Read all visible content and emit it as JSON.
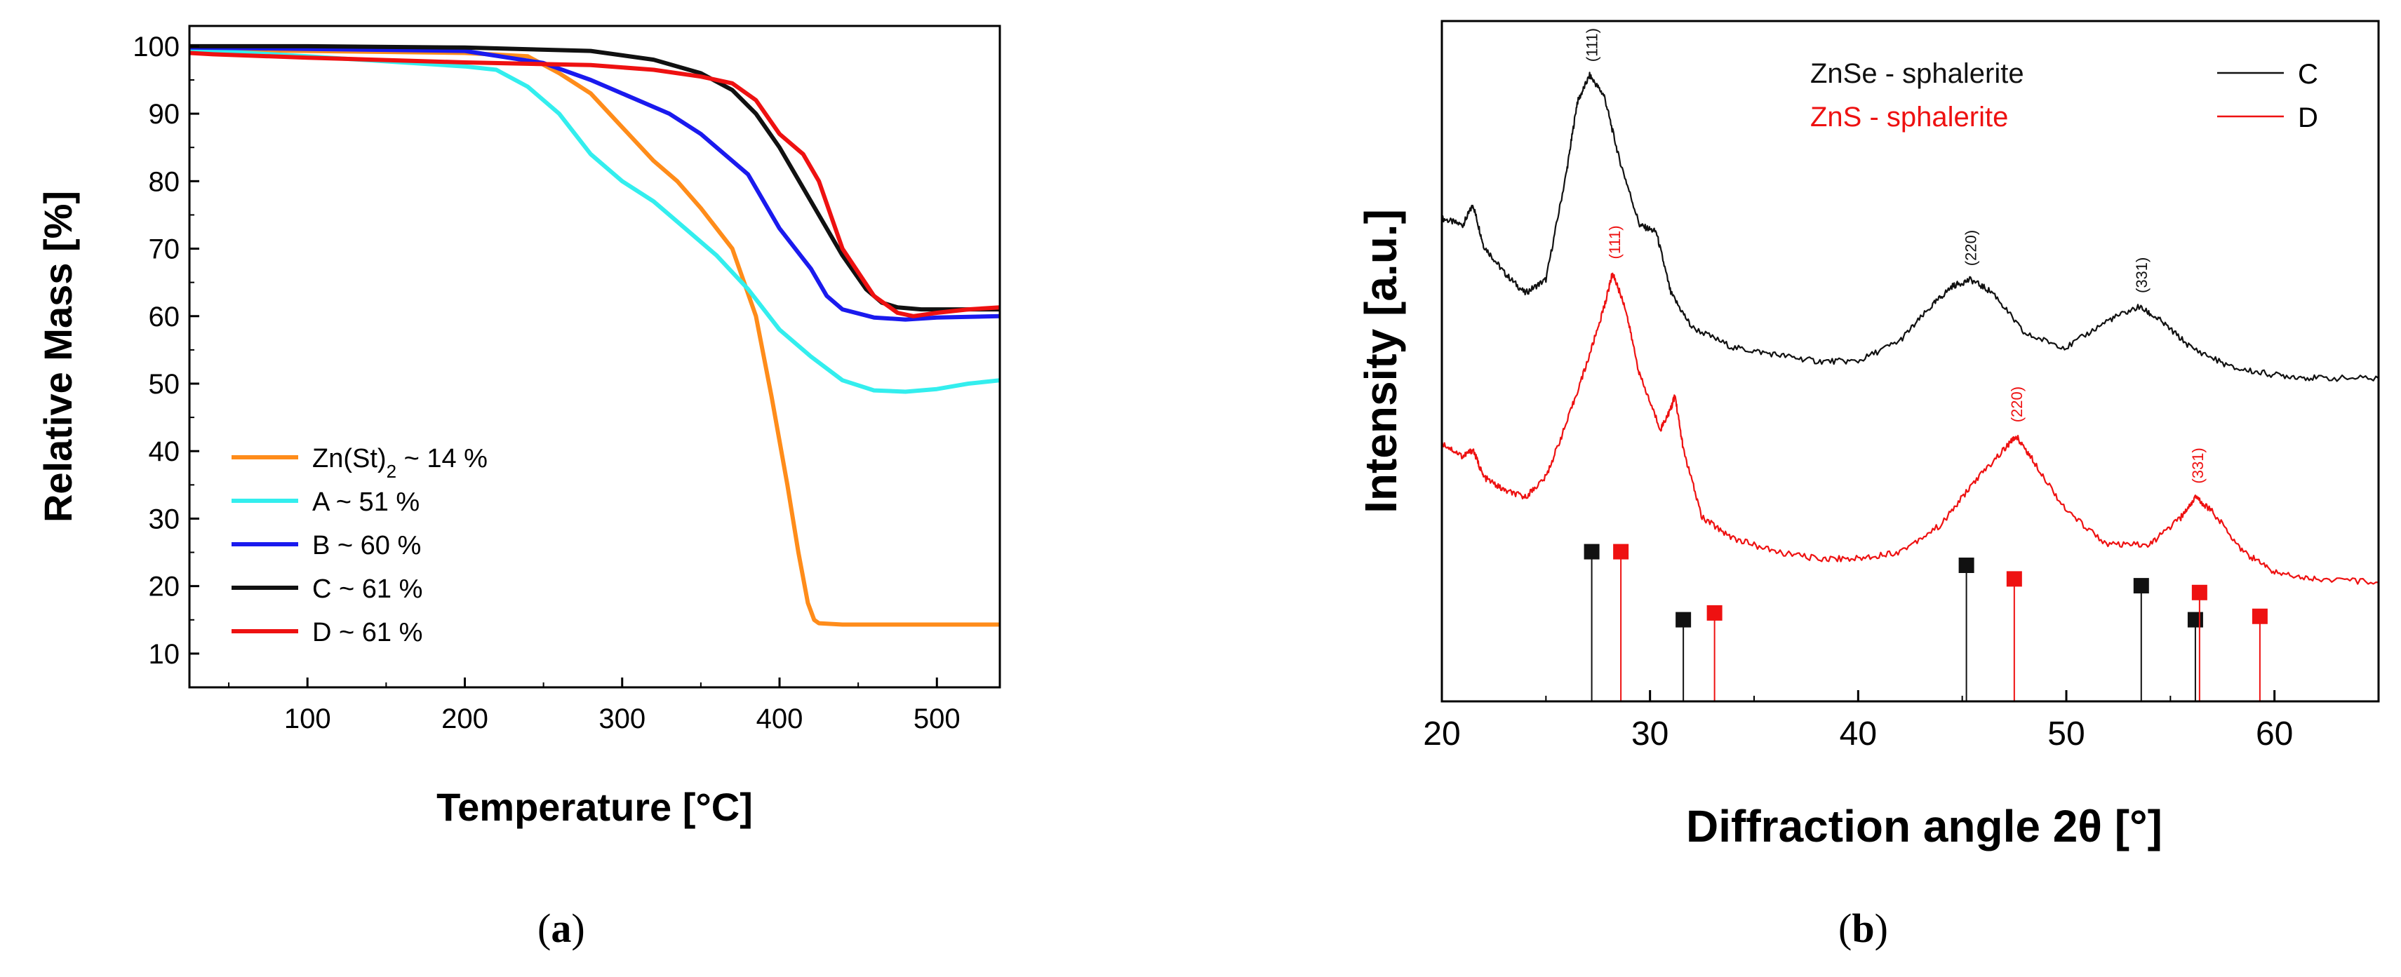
{
  "figure": {
    "panel_a_label": "a",
    "panel_b_label": "b"
  },
  "chart_data": [
    {
      "type": "line",
      "panel": "a",
      "xlabel": "Temperature [°C]",
      "ylabel": "Relative Mass [%]",
      "xlim": [
        25,
        540
      ],
      "ylim": [
        5,
        103
      ],
      "xticks": [
        100,
        200,
        300,
        400,
        500
      ],
      "yticks": [
        10,
        20,
        30,
        40,
        50,
        60,
        70,
        80,
        90,
        100
      ],
      "grid": false,
      "legend_position": "bottom-left",
      "series": [
        {
          "name": "Zn(St)2 ~ 14 %",
          "legend_main": "Zn(St)",
          "legend_sub": "2",
          "legend_tail": " ~ 14 %",
          "color": "#ff8c1a",
          "x": [
            25,
            100,
            200,
            240,
            260,
            280,
            300,
            320,
            335,
            350,
            370,
            385,
            395,
            405,
            412,
            418,
            422,
            425,
            440,
            500,
            540
          ],
          "y": [
            99.5,
            99.3,
            99.0,
            98.5,
            96.0,
            93.0,
            88.0,
            83.0,
            80.0,
            76.0,
            70.0,
            60.0,
            48.0,
            35.0,
            25.0,
            17.5,
            15.0,
            14.5,
            14.3,
            14.3,
            14.3
          ]
        },
        {
          "name": "A ~ 51 %",
          "legend_main": "A ~ 51 %",
          "legend_sub": "",
          "legend_tail": "",
          "color": "#33eeee",
          "x": [
            25,
            100,
            200,
            220,
            240,
            260,
            280,
            300,
            320,
            340,
            360,
            380,
            400,
            420,
            440,
            460,
            480,
            500,
            520,
            540
          ],
          "y": [
            99.5,
            98.5,
            97.0,
            96.5,
            94.0,
            90.0,
            84.0,
            80.0,
            77.0,
            73.0,
            69.0,
            64.0,
            58.0,
            54.0,
            50.5,
            49.0,
            48.8,
            49.2,
            50.0,
            50.5
          ]
        },
        {
          "name": "B ~ 60 %",
          "legend_main": "B ~ 60 %",
          "legend_sub": "",
          "legend_tail": "",
          "color": "#1a1aee",
          "x": [
            25,
            100,
            200,
            250,
            280,
            300,
            330,
            350,
            370,
            380,
            400,
            420,
            430,
            440,
            460,
            480,
            500,
            540
          ],
          "y": [
            99.8,
            99.6,
            99.3,
            97.5,
            95.0,
            93.0,
            90.0,
            87.0,
            83.0,
            81.0,
            73.0,
            67.0,
            63.0,
            61.0,
            59.8,
            59.5,
            59.8,
            60.0
          ]
        },
        {
          "name": "C ~ 61 %",
          "legend_main": "C ~ 61 %",
          "legend_sub": "",
          "legend_tail": "",
          "color": "#111111",
          "x": [
            25,
            100,
            200,
            280,
            320,
            350,
            370,
            385,
            400,
            420,
            440,
            455,
            465,
            475,
            490,
            500,
            540
          ],
          "y": [
            100.0,
            100.0,
            99.8,
            99.3,
            98.0,
            96.0,
            93.5,
            90.0,
            85.0,
            77.0,
            69.0,
            64.0,
            62.0,
            61.3,
            61.0,
            61.0,
            61.0
          ]
        },
        {
          "name": "D ~ 61 %",
          "legend_main": "D ~ 61 %",
          "legend_sub": "",
          "legend_tail": "",
          "color": "#ee1111",
          "x": [
            25,
            40,
            100,
            200,
            280,
            320,
            350,
            370,
            385,
            400,
            415,
            425,
            440,
            460,
            475,
            485,
            500,
            520,
            540
          ],
          "y": [
            99.0,
            98.8,
            98.3,
            97.6,
            97.2,
            96.5,
            95.5,
            94.5,
            92.0,
            87.0,
            84.0,
            80.0,
            70.0,
            63.0,
            60.5,
            60.0,
            60.5,
            61.0,
            61.3
          ]
        }
      ]
    },
    {
      "type": "line",
      "panel": "b",
      "xlabel": "Diffraction angle 2θ [°]",
      "ylabel": "Intensity [a.u.]",
      "xlim": [
        20,
        65
      ],
      "ylim": [
        0,
        100
      ],
      "xticks": [
        20,
        30,
        40,
        50,
        60
      ],
      "grid": false,
      "legend_position": "top-right",
      "legend_text": [
        {
          "label": "ZnSe - sphalerite",
          "color": "#111111"
        },
        {
          "label": "ZnS - sphalerite",
          "color": "#ee1111"
        }
      ],
      "legend_lines": [
        {
          "label": "C",
          "color": "#111111"
        },
        {
          "label": "D",
          "color": "#ee1111"
        }
      ],
      "series": [
        {
          "name": "C",
          "color": "#111111",
          "x": [
            20,
            21,
            21.5,
            22,
            23,
            24,
            25,
            26,
            26.5,
            27.1,
            27.8,
            28.5,
            29.5,
            30.3,
            31,
            32,
            34,
            36,
            38,
            40,
            42,
            43.5,
            44.5,
            45.4,
            46.5,
            48,
            50,
            52,
            53.5,
            54.5,
            56,
            58,
            60,
            62,
            65
          ],
          "y": [
            71,
            70,
            73,
            67,
            63,
            60,
            62,
            78,
            88,
            92,
            89,
            80,
            70,
            69,
            60,
            55,
            52,
            51,
            50,
            50,
            53,
            58,
            61,
            62,
            60,
            54,
            52,
            56,
            58,
            56,
            52,
            49,
            48,
            47.5,
            47.5
          ]
        },
        {
          "name": "D",
          "color": "#ee1111",
          "x": [
            20,
            21,
            21.5,
            22,
            23,
            24,
            25,
            26,
            27,
            27.8,
            28.2,
            28.8,
            29.5,
            30.5,
            31.0,
            31.2,
            31.6,
            32.5,
            34,
            36,
            38,
            40,
            42,
            44,
            45.5,
            47,
            47.6,
            48.5,
            50,
            52,
            54,
            55.5,
            56.2,
            57,
            58.5,
            60,
            62,
            65
          ],
          "y": [
            38,
            36,
            37,
            33,
            31,
            30,
            33,
            41,
            50,
            58,
            63,
            58,
            48,
            40,
            43,
            45,
            37,
            27,
            24,
            22,
            21,
            21,
            22,
            26,
            32,
            37,
            39,
            35,
            28,
            23,
            23,
            27,
            30,
            28,
            22,
            19,
            18,
            17.5
          ]
        }
      ],
      "peak_labels": [
        {
          "label": "(111)",
          "x": 27.2,
          "y": 94,
          "color": "#111111"
        },
        {
          "label": "(220)",
          "x": 45.4,
          "y": 64,
          "color": "#111111"
        },
        {
          "label": "(331)",
          "x": 53.6,
          "y": 60,
          "color": "#111111"
        },
        {
          "label": "(111)",
          "x": 28.3,
          "y": 65,
          "color": "#ee1111"
        },
        {
          "label": "(220)",
          "x": 47.6,
          "y": 41,
          "color": "#ee1111"
        },
        {
          "label": "(331)",
          "x": 56.3,
          "y": 32,
          "color": "#ee1111"
        }
      ],
      "reference_lines": [
        {
          "phase": "ZnSe",
          "color": "#111111",
          "positions": [
            27.2,
            31.6,
            45.2,
            53.6,
            56.2
          ],
          "heights": [
            22,
            12,
            20,
            17,
            12
          ]
        },
        {
          "phase": "ZnS",
          "color": "#ee1111",
          "positions": [
            28.6,
            33.1,
            47.5,
            56.4,
            59.3
          ],
          "heights": [
            22,
            13,
            18,
            16,
            12.5
          ]
        }
      ]
    }
  ]
}
